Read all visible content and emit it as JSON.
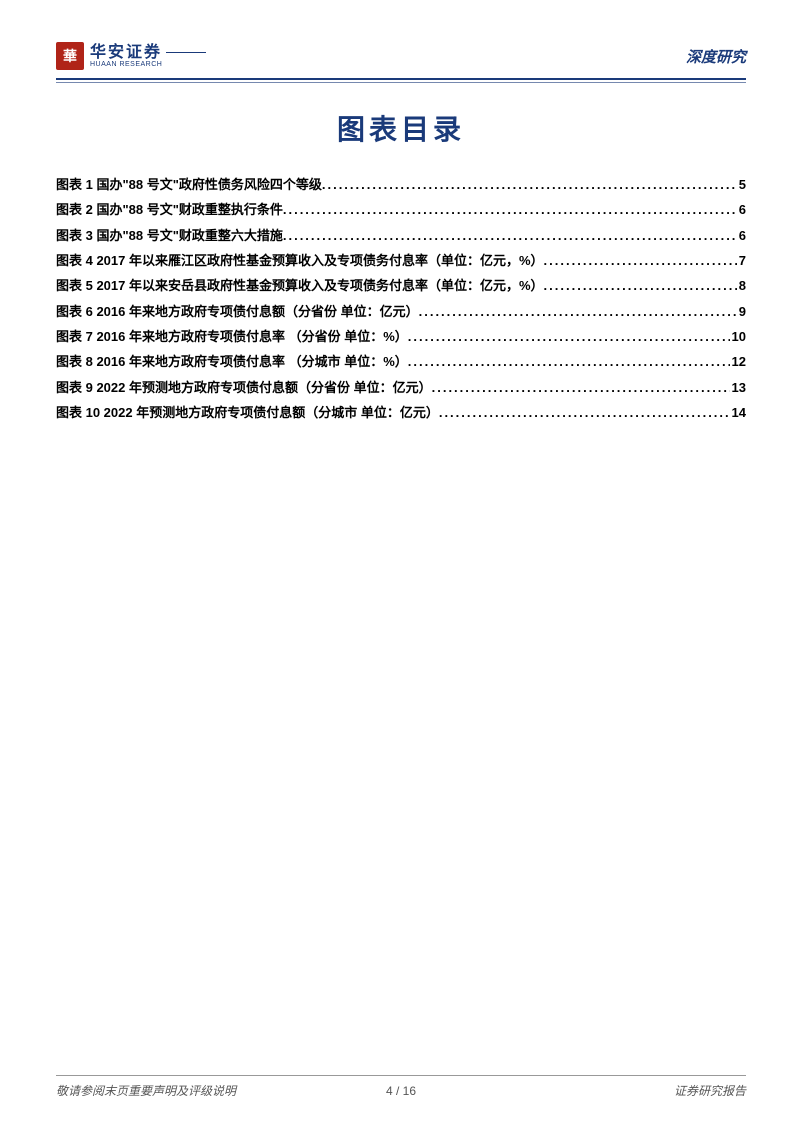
{
  "header": {
    "logo_mark": "華",
    "logo_cn": "华安证券",
    "logo_en": "HUAAN RESEARCH",
    "category": "深度研究"
  },
  "title": "图表目录",
  "toc": [
    {
      "label": "图表 1 国办\"88 号文\"政府性债务风险四个等级",
      "page": "5"
    },
    {
      "label": "图表 2 国办\"88 号文\"财政重整执行条件",
      "page": "6"
    },
    {
      "label": "图表 3 国办\"88 号文\"财政重整六大措施",
      "page": "6"
    },
    {
      "label": "图表 4 2017 年以来雁江区政府性基金预算收入及专项债务付息率（单位：亿元，%）",
      "page": "7"
    },
    {
      "label": "图表 5 2017 年以来安岳县政府性基金预算收入及专项债务付息率（单位：亿元，%）",
      "page": "8"
    },
    {
      "label": "图表 6 2016 年来地方政府专项债付息额（分省份 单位：亿元）",
      "page": "9"
    },
    {
      "label": "图表 7 2016 年来地方政府专项债付息率 （分省份 单位：%）",
      "page": "10"
    },
    {
      "label": "图表 8 2016 年来地方政府专项债付息率 （分城市 单位：%）",
      "page": "12"
    },
    {
      "label": "图表 9 2022 年预测地方政府专项债付息额（分省份 单位：亿元）",
      "page": "13"
    },
    {
      "label": "图表 10 2022 年预测地方政府专项债付息额（分城市 单位：亿元）",
      "page": "14"
    }
  ],
  "footer": {
    "left": "敬请参阅末页重要声明及评级说明",
    "center_page": "4 / 16",
    "right": "证券研究报告"
  },
  "colors": {
    "brand_blue": "#1a3a7a",
    "brand_red": "#b02418",
    "text": "#000000",
    "footer_grey": "#555555"
  }
}
